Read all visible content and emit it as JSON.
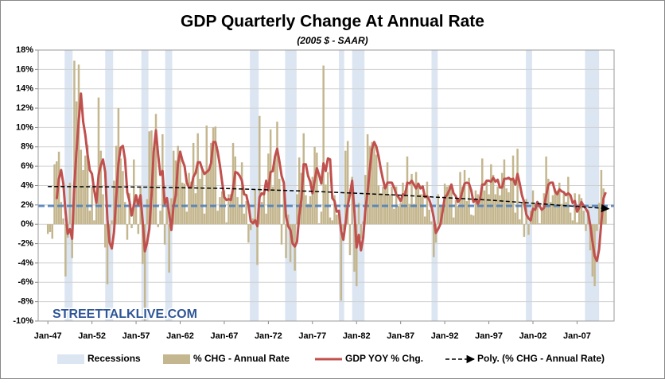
{
  "chart_data": {
    "type": "combo",
    "title": "GDP Quarterly Change At Annual Rate",
    "subtitle": "(2005 $ - SAAR)",
    "watermark": "STREETTALKLIVE.COM",
    "xlim": [
      1945.9,
      2011.2
    ],
    "xticks": [
      {
        "value": 1947,
        "label": "Jan-47"
      },
      {
        "value": 1952,
        "label": "Jan-52"
      },
      {
        "value": 1957,
        "label": "Jan-57"
      },
      {
        "value": 1962,
        "label": "Jan-62"
      },
      {
        "value": 1967,
        "label": "Jan-67"
      },
      {
        "value": 1972,
        "label": "Jan-72"
      },
      {
        "value": 1977,
        "label": "Jan-77"
      },
      {
        "value": 1982,
        "label": "Jan-82"
      },
      {
        "value": 1987,
        "label": "Jan-87"
      },
      {
        "value": 1992,
        "label": "Jan-92"
      },
      {
        "value": 1997,
        "label": "Jan-97"
      },
      {
        "value": 2002,
        "label": "Jan-02"
      },
      {
        "value": 2007,
        "label": "Jan-07"
      }
    ],
    "ylim": [
      -10,
      18
    ],
    "yticks": [
      {
        "value": 18,
        "label": "18%"
      },
      {
        "value": 16,
        "label": "16%"
      },
      {
        "value": 14,
        "label": "14%"
      },
      {
        "value": 12,
        "label": "12%"
      },
      {
        "value": 10,
        "label": "10%"
      },
      {
        "value": 8,
        "label": "8%"
      },
      {
        "value": 6,
        "label": "6%"
      },
      {
        "value": 4,
        "label": "4%"
      },
      {
        "value": 2,
        "label": "2%"
      },
      {
        "value": 0,
        "label": "0%"
      },
      {
        "value": -2,
        "label": "-2%"
      },
      {
        "value": -4,
        "label": "-4%"
      },
      {
        "value": -6,
        "label": "-6%"
      },
      {
        "value": -8,
        "label": "-8%"
      },
      {
        "value": -10,
        "label": "-10%"
      }
    ],
    "grid": true,
    "legend": "bottom",
    "recessions": {
      "name": "Recessions",
      "color": "#dce6f2",
      "bands": [
        [
          1948.9,
          1949.8
        ],
        [
          1953.5,
          1954.4
        ],
        [
          1957.6,
          1958.4
        ],
        [
          1960.3,
          1961.1
        ],
        [
          1969.9,
          1970.9
        ],
        [
          1973.9,
          1975.2
        ],
        [
          1980.0,
          1980.6
        ],
        [
          1981.5,
          1982.9
        ],
        [
          1990.5,
          1991.2
        ],
        [
          2001.2,
          2001.9
        ],
        [
          2007.9,
          2009.5
        ]
      ]
    },
    "reference_line": {
      "value": 1.9,
      "color": "#4f81bd"
    },
    "x": [
      1947,
      1947.25,
      1947.5,
      1947.75,
      1948,
      1948.25,
      1948.5,
      1948.75,
      1949,
      1949.25,
      1949.5,
      1949.75,
      1950,
      1950.25,
      1950.5,
      1950.75,
      1951,
      1951.25,
      1951.5,
      1951.75,
      1952,
      1952.25,
      1952.5,
      1952.75,
      1953,
      1953.25,
      1953.5,
      1953.75,
      1954,
      1954.25,
      1954.5,
      1954.75,
      1955,
      1955.25,
      1955.5,
      1955.75,
      1956,
      1956.25,
      1956.5,
      1956.75,
      1957,
      1957.25,
      1957.5,
      1957.75,
      1958,
      1958.25,
      1958.5,
      1958.75,
      1959,
      1959.25,
      1959.5,
      1959.75,
      1960,
      1960.25,
      1960.5,
      1960.75,
      1961,
      1961.25,
      1961.5,
      1961.75,
      1962,
      1962.25,
      1962.5,
      1962.75,
      1963,
      1963.25,
      1963.5,
      1963.75,
      1964,
      1964.25,
      1964.5,
      1964.75,
      1965,
      1965.25,
      1965.5,
      1965.75,
      1966,
      1966.25,
      1966.5,
      1966.75,
      1967,
      1967.25,
      1967.5,
      1967.75,
      1968,
      1968.25,
      1968.5,
      1968.75,
      1969,
      1969.25,
      1969.5,
      1969.75,
      1970,
      1970.25,
      1970.5,
      1970.75,
      1971,
      1971.25,
      1971.5,
      1971.75,
      1972,
      1972.25,
      1972.5,
      1972.75,
      1973,
      1973.25,
      1973.5,
      1973.75,
      1974,
      1974.25,
      1974.5,
      1974.75,
      1975,
      1975.25,
      1975.5,
      1975.75,
      1976,
      1976.25,
      1976.5,
      1976.75,
      1977,
      1977.25,
      1977.5,
      1977.75,
      1978,
      1978.25,
      1978.5,
      1978.75,
      1979,
      1979.25,
      1979.5,
      1979.75,
      1980,
      1980.25,
      1980.5,
      1980.75,
      1981,
      1981.25,
      1981.5,
      1981.75,
      1982,
      1982.25,
      1982.5,
      1982.75,
      1983,
      1983.25,
      1983.5,
      1983.75,
      1984,
      1984.25,
      1984.5,
      1984.75,
      1985,
      1985.25,
      1985.5,
      1985.75,
      1986,
      1986.25,
      1986.5,
      1986.75,
      1987,
      1987.25,
      1987.5,
      1987.75,
      1988,
      1988.25,
      1988.5,
      1988.75,
      1989,
      1989.25,
      1989.5,
      1989.75,
      1990,
      1990.25,
      1990.5,
      1990.75,
      1991,
      1991.25,
      1991.5,
      1991.75,
      1992,
      1992.25,
      1992.5,
      1992.75,
      1993,
      1993.25,
      1993.5,
      1993.75,
      1994,
      1994.25,
      1994.5,
      1994.75,
      1995,
      1995.25,
      1995.5,
      1995.75,
      1996,
      1996.25,
      1996.5,
      1996.75,
      1997,
      1997.25,
      1997.5,
      1997.75,
      1998,
      1998.25,
      1998.5,
      1998.75,
      1999,
      1999.25,
      1999.5,
      1999.75,
      2000,
      2000.25,
      2000.5,
      2000.75,
      2001,
      2001.25,
      2001.5,
      2001.75,
      2002,
      2002.25,
      2002.5,
      2002.75,
      2003,
      2003.25,
      2003.5,
      2003.75,
      2004,
      2004.25,
      2004.5,
      2004.75,
      2005,
      2005.25,
      2005.5,
      2005.75,
      2006,
      2006.25,
      2006.5,
      2006.75,
      2007,
      2007.25,
      2007.5,
      2007.75,
      2008,
      2008.25,
      2008.5,
      2008.75,
      2009,
      2009.25,
      2009.5,
      2009.75,
      2010,
      2010.25
    ],
    "series": [
      {
        "name": "% CHG - Annual Rate",
        "type": "bar",
        "color": "#c4b68e",
        "values": [
          -1,
          -0.8,
          -1.5,
          6.2,
          6.5,
          7.5,
          2.3,
          0.6,
          -5.4,
          -1.4,
          4.3,
          -3.5,
          16.9,
          12.7,
          16.5,
          7.7,
          5.6,
          7.1,
          8.2,
          1.4,
          3.9,
          0.4,
          3.1,
          13.1,
          7.6,
          3.1,
          -2.4,
          -6.2,
          -1.9,
          0.4,
          4.5,
          8.1,
          12,
          6.8,
          5.5,
          2.3,
          -1.6,
          3.2,
          -0.4,
          6.7,
          2.5,
          -1,
          3.9,
          -4.1,
          -10,
          2.6,
          9.6,
          9.7,
          7.9,
          11.4,
          -0.3,
          1.4,
          9.3,
          -2.1,
          2.1,
          -5,
          2.7,
          7.6,
          6.6,
          8.1,
          7.5,
          4.3,
          4.2,
          1.3,
          5.3,
          4.4,
          8.4,
          3.2,
          9.4,
          4.7,
          5.6,
          1.1,
          10.2,
          5.5,
          8.4,
          10,
          10.1,
          1.4,
          2.8,
          3.4,
          3.5,
          0.2,
          3.1,
          3.1,
          8.4,
          7,
          2.8,
          1.9,
          6.4,
          1.1,
          2.4,
          -1.9,
          -0.6,
          0.6,
          3.6,
          -4.2,
          11.2,
          2.3,
          3.2,
          1.1,
          7.3,
          9.8,
          3.9,
          6.8,
          10.6,
          4.7,
          -2.1,
          3.9,
          -3.5,
          1,
          -3.9,
          -1.6,
          -4.8,
          3.1,
          6.9,
          5.3,
          9.4,
          3,
          2.1,
          2.9,
          4.9,
          8,
          7.4,
          0.1,
          1.3,
          16.4,
          4.1,
          5.4,
          0.7,
          0.4,
          3,
          1,
          1.3,
          -7.9,
          -0.6,
          7.6,
          8.6,
          -3.2,
          4.9,
          -4.9,
          -6.4,
          2.2,
          -1.5,
          0.3,
          5.1,
          9.3,
          8.1,
          8.5,
          8.2,
          7.2,
          4,
          3.2,
          3.9,
          3.6,
          6.4,
          3.1,
          3.9,
          1.6,
          3.9,
          1.9,
          2.2,
          4.3,
          3.5,
          7,
          2.1,
          5.2,
          2.1,
          5.4,
          4.1,
          3.1,
          3.1,
          0.8,
          4.4,
          1.5,
          0.3,
          -3.4,
          -1.9,
          3.1,
          2,
          1.9,
          4.2,
          3.9,
          4,
          4.2,
          0.7,
          2.5,
          1.9,
          5.4,
          3.9,
          5.6,
          2.4,
          4.8,
          1,
          0.9,
          3.5,
          3.1,
          2.9,
          6.8,
          3.5,
          4.6,
          3.1,
          6.2,
          5.1,
          3.1,
          3.9,
          3,
          5.3,
          6.7,
          3.7,
          3.3,
          4.8,
          7.1,
          1.2,
          7.8,
          0.5,
          2.3,
          -1.3,
          2.6,
          -1.1,
          1.4,
          3.5,
          2.1,
          2,
          0.1,
          1.6,
          3.2,
          7,
          4.7,
          2.3,
          3,
          3.7,
          3.5,
          4.3,
          2.1,
          3.4,
          2.3,
          4.9,
          1.2,
          0.4,
          3.2,
          0.2,
          3.1,
          2.7,
          1.4,
          -0.7,
          1.5,
          -2.7,
          -5.4,
          -6.4,
          -0.7,
          2.2,
          5.6,
          3.7,
          1.7
        ]
      },
      {
        "name": "GDP YOY % Chg.",
        "type": "line",
        "color": "#c0504d",
        "values": [
          null,
          null,
          null,
          null,
          2.6,
          4.7,
          5.6,
          4.2,
          1.3,
          -1,
          -0.5,
          -1.5,
          4.1,
          7.6,
          10.7,
          13.5,
          10.6,
          9.2,
          7.2,
          5.6,
          5.2,
          3.5,
          2.2,
          5.1,
          6.1,
          6.7,
          5.4,
          0.5,
          -1.9,
          -2.5,
          -0.8,
          2.8,
          6.3,
          7.9,
          8.1,
          6.7,
          3.3,
          2.4,
          0.9,
          2,
          3,
          2,
          3,
          0.3,
          -2.8,
          -1.9,
          -0.5,
          3,
          7.5,
          9.7,
          7.2,
          5.1,
          5.5,
          2.1,
          2.7,
          1.1,
          -0.6,
          1.9,
          3,
          6.3,
          7.5,
          6.6,
          6,
          4.3,
          3.8,
          3.8,
          4.9,
          5.3,
          6.4,
          6.4,
          5.7,
          5.2,
          5.4,
          5.6,
          6.3,
          8.5,
          8.5,
          7.5,
          6.1,
          4.4,
          2.8,
          2.5,
          2.6,
          2.5,
          3.7,
          5.4,
          5.3,
          5,
          4.5,
          3.1,
          3,
          2,
          0.3,
          0.1,
          0.4,
          -0.2,
          2.8,
          3.2,
          3.1,
          4.5,
          3.5,
          5.4,
          5.5,
          7,
          7.8,
          6.5,
          5,
          4.3,
          0.8,
          -0.2,
          -0.6,
          -2,
          -2.3,
          -1.8,
          0.9,
          2.6,
          6.2,
          6.2,
          5,
          4.4,
          3.2,
          4.5,
          5.8,
          5.1,
          4.2,
          6.3,
          5.5,
          6.8,
          6.7,
          2.7,
          2.4,
          1.3,
          1.4,
          -0.7,
          -1.6,
          0.1,
          1.9,
          3.1,
          4.5,
          1.4,
          -2.4,
          -1.1,
          -2.7,
          -1.4,
          1.5,
          3.3,
          5.7,
          7.8,
          8.5,
          8,
          7,
          5.7,
          4.6,
          3.7,
          4.3,
          4.3,
          4.3,
          3.8,
          3.1,
          2.8,
          2.4,
          3.1,
          3,
          4.3,
          4.2,
          4.5,
          4.1,
          3.7,
          4.2,
          3.7,
          3.9,
          2.8,
          2.9,
          2.5,
          1.8,
          0.7,
          -0.9,
          -0.5,
          0,
          1.3,
          2.8,
          3,
          3.5,
          4.1,
          3.2,
          2.9,
          2.3,
          2.6,
          3.4,
          4.2,
          4.3,
          4.2,
          3.5,
          2.3,
          2.6,
          2.1,
          2.6,
          4.1,
          4.1,
          4.5,
          4.5,
          4.4,
          4.8,
          4.4,
          4.6,
          3.8,
          3.8,
          4.7,
          4.7,
          4.8,
          4.6,
          4.7,
          4.1,
          5.2,
          4.2,
          3,
          2.3,
          1,
          0.6,
          0.4,
          1.6,
          1.5,
          2.3,
          1.9,
          1.5,
          1.7,
          3,
          4.1,
          4.3,
          4.3,
          3.4,
          3.1,
          3.6,
          3.4,
          3.3,
          3,
          3.2,
          3,
          2.2,
          2.4,
          1.3,
          1.7,
          2.3,
          1.9,
          1.6,
          1.2,
          -0.1,
          -1.8,
          -3.3,
          -3.8,
          -2.6,
          0.2,
          2.7,
          3.3
        ]
      }
    ],
    "trendline": {
      "name": "Poly. (% CHG - Annual Rate)",
      "color": "#000000",
      "x": [
        1947,
        1957,
        1967,
        1977,
        1987,
        1997,
        2010.6
      ],
      "values": [
        3.9,
        3.85,
        3.7,
        3.4,
        3.0,
        2.5,
        1.6
      ]
    }
  }
}
